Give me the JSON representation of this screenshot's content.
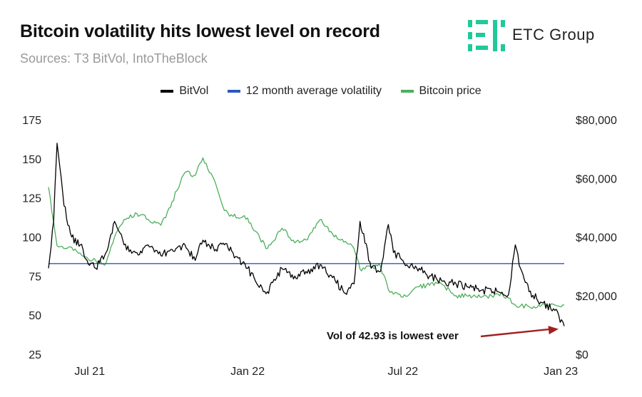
{
  "header": {
    "title": "Bitcoin volatility hits lowest level on record",
    "source": "Sources: T3 BitVol, IntoTheBlock"
  },
  "brand": {
    "name": "ETC Group",
    "icon": "etc-group-logo-icon",
    "color": "#1fc99a"
  },
  "legend": [
    {
      "label": "BitVol",
      "color": "#000000"
    },
    {
      "label": "12 month average volatility",
      "color": "#2b59c3"
    },
    {
      "label": "Bitcoin price",
      "color": "#4caf5a"
    }
  ],
  "chart_data": {
    "type": "line",
    "x": [
      "2021-05-14",
      "2021-05-20",
      "2021-05-24",
      "2021-06-01",
      "2021-06-10",
      "2021-06-20",
      "2021-06-28",
      "2021-07-08",
      "2021-07-20",
      "2021-07-30",
      "2021-08-10",
      "2021-08-25",
      "2021-09-07",
      "2021-09-22",
      "2021-10-05",
      "2021-10-20",
      "2021-11-01",
      "2021-11-10",
      "2021-11-25",
      "2021-12-05",
      "2021-12-15",
      "2022-01-01",
      "2022-01-10",
      "2022-01-24",
      "2022-02-10",
      "2022-02-25",
      "2022-03-10",
      "2022-03-28",
      "2022-04-10",
      "2022-04-25",
      "2022-05-05",
      "2022-05-12",
      "2022-05-25",
      "2022-06-05",
      "2022-06-14",
      "2022-06-20",
      "2022-07-01",
      "2022-07-10",
      "2022-07-20",
      "2022-08-01",
      "2022-08-15",
      "2022-09-01",
      "2022-09-15",
      "2022-10-01",
      "2022-10-20",
      "2022-11-01",
      "2022-11-09",
      "2022-11-15",
      "2022-11-25",
      "2022-12-10",
      "2022-12-25",
      "2023-01-05"
    ],
    "series": [
      {
        "name": "BitVol",
        "axis": "left",
        "color": "#000000",
        "values": [
          80,
          110,
          160,
          120,
          100,
          95,
          85,
          80,
          90,
          110,
          95,
          90,
          95,
          88,
          92,
          95,
          85,
          98,
          92,
          95,
          90,
          80,
          72,
          65,
          80,
          75,
          78,
          82,
          74,
          64,
          70,
          110,
          80,
          78,
          108,
          90,
          85,
          82,
          80,
          75,
          72,
          70,
          68,
          66,
          65,
          63,
          95,
          80,
          65,
          58,
          53,
          43
        ]
      },
      {
        "name": "12 month average volatility",
        "axis": "left",
        "color": "#2b59c3",
        "values": [
          83,
          83,
          83,
          83,
          83,
          83,
          83,
          83,
          83,
          83,
          83,
          83,
          83,
          83,
          83,
          83,
          83,
          83,
          83,
          83,
          83,
          83,
          83,
          83,
          83,
          83,
          83,
          83,
          83,
          83,
          83,
          83,
          83,
          83,
          83,
          83,
          83,
          83,
          83,
          83,
          83,
          83,
          83,
          83,
          83,
          83,
          83,
          83,
          83,
          83,
          83,
          83
        ]
      },
      {
        "name": "Bitcoin price",
        "axis": "right",
        "color": "#4caf5a",
        "values": [
          57000,
          45000,
          37000,
          36000,
          36500,
          34500,
          33000,
          32000,
          31000,
          40000,
          46000,
          48000,
          46000,
          44000,
          52000,
          62000,
          61000,
          67000,
          58000,
          49000,
          47000,
          46500,
          42000,
          36000,
          43000,
          38000,
          39000,
          46000,
          41000,
          38500,
          36000,
          29000,
          29500,
          30000,
          22000,
          20500,
          19500,
          21000,
          23000,
          23500,
          24000,
          20000,
          19800,
          19500,
          20500,
          19200,
          16800,
          16500,
          16200,
          16900,
          16800,
          16800
        ]
      }
    ],
    "ylim_left": [
      25,
      175
    ],
    "yticks_left": [
      "175",
      "150",
      "125",
      "100",
      "75",
      "50",
      "25"
    ],
    "ylim_right": [
      0,
      80000
    ],
    "yticks_right": [
      "$80,000",
      "$60,000",
      "$40,000",
      "$20,000",
      "$0"
    ],
    "xticks": [
      {
        "date": "2021-07-01",
        "label": "Jul 21"
      },
      {
        "date": "2022-01-01",
        "label": "Jan 22"
      },
      {
        "date": "2022-07-01",
        "label": "Jul 22"
      },
      {
        "date": "2023-01-01",
        "label": "Jan 23"
      }
    ],
    "annotation": {
      "text": "Vol of 42.93 is lowest ever",
      "value": 42.93,
      "date": "2023-01-05",
      "color": "#a02020"
    }
  }
}
